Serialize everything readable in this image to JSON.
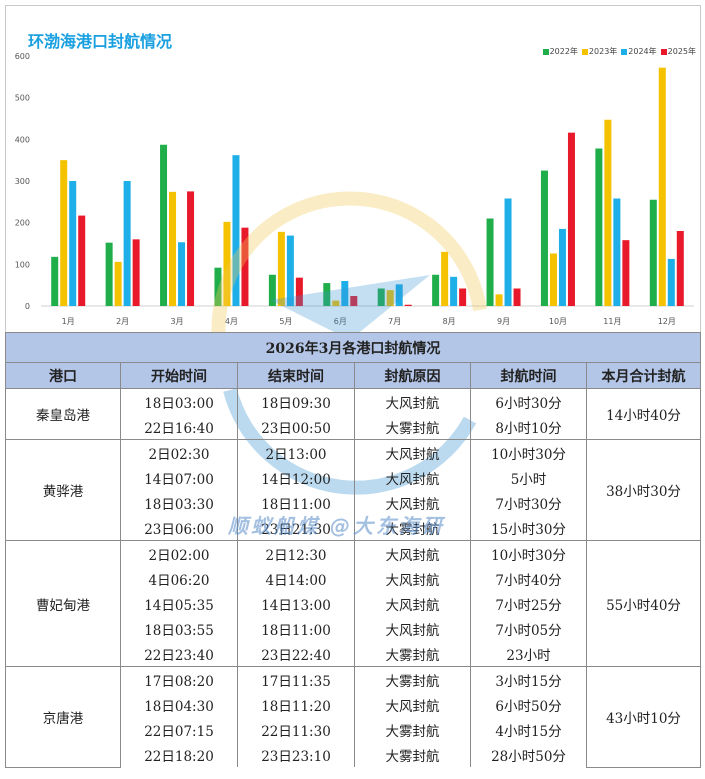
{
  "chart_data": {
    "type": "bar",
    "title": "环渤海港口封航情况",
    "categories": [
      "1月",
      "2月",
      "3月",
      "4月",
      "5月",
      "6月",
      "7月",
      "8月",
      "9月",
      "10月",
      "11月",
      "12月"
    ],
    "ylim": [
      0,
      600
    ],
    "yticks": [
      "0",
      "100",
      "200",
      "300",
      "400",
      "500",
      "600"
    ],
    "grid": false,
    "legend_position": "top-right",
    "series": [
      {
        "name": "2022年",
        "color": "#1fae4a",
        "values": [
          118,
          152,
          387,
          92,
          75,
          55,
          42,
          75,
          210,
          325,
          378,
          255
        ]
      },
      {
        "name": "2023年",
        "color": "#f5c200",
        "values": [
          350,
          106,
          274,
          202,
          178,
          13,
          38,
          130,
          28,
          126,
          447,
          572
        ]
      },
      {
        "name": "2024年",
        "color": "#1eaee8",
        "values": [
          300,
          300,
          153,
          362,
          169,
          60,
          52,
          70,
          258,
          185,
          258,
          113
        ]
      },
      {
        "name": "2025年",
        "color": "#e8192a",
        "values": [
          217,
          160,
          275,
          188,
          68,
          24,
          3,
          42,
          42,
          416,
          158,
          180
        ]
      }
    ]
  },
  "table": {
    "caption": "2026年3月各港口封航情况",
    "headers": [
      "港口",
      "开始时间",
      "结束时间",
      "封航原因",
      "封航时间",
      "本月合计封航"
    ],
    "groups": [
      {
        "port": "秦皇岛港",
        "total": "14小时40分",
        "rows": [
          [
            "18日03:00",
            "18日09:30",
            "大风封航",
            "6小时30分"
          ],
          [
            "22日16:40",
            "23日00:50",
            "大雾封航",
            "8小时10分"
          ]
        ]
      },
      {
        "port": "黄骅港",
        "total": "38小时30分",
        "rows": [
          [
            "2日02:30",
            "2日13:00",
            "大风封航",
            "10小时30分"
          ],
          [
            "14日07:00",
            "14日12:00",
            "大风封航",
            "5小时"
          ],
          [
            "18日03:30",
            "18日11:00",
            "大风封航",
            "7小时30分"
          ],
          [
            "23日06:00",
            "23日21:30",
            "大雾封航",
            "15小时30分"
          ]
        ]
      },
      {
        "port": "曹妃甸港",
        "total": "55小时40分",
        "rows": [
          [
            "2日02:00",
            "2日12:30",
            "大风封航",
            "10小时30分"
          ],
          [
            "4日06:20",
            "4日14:00",
            "大风封航",
            "7小时40分"
          ],
          [
            "14日05:35",
            "14日13:00",
            "大风封航",
            "7小时25分"
          ],
          [
            "18日03:55",
            "18日11:00",
            "大风封航",
            "7小时05分"
          ],
          [
            "22日23:40",
            "23日22:40",
            "大雾封航",
            "23小时"
          ]
        ]
      },
      {
        "port": "京唐港",
        "total": "43小时10分",
        "rows": [
          [
            "17日08:20",
            "17日11:35",
            "大雾封航",
            "3小时15分"
          ],
          [
            "18日04:30",
            "18日11:20",
            "大风封航",
            "6小时50分"
          ],
          [
            "22日07:15",
            "22日11:30",
            "大雾封航",
            "4小时15分"
          ],
          [
            "22日18:20",
            "23日23:10",
            "大雾封航",
            "28小时50分"
          ]
        ]
      }
    ]
  },
  "watermark": "顺蚁船煤 @大东海研"
}
